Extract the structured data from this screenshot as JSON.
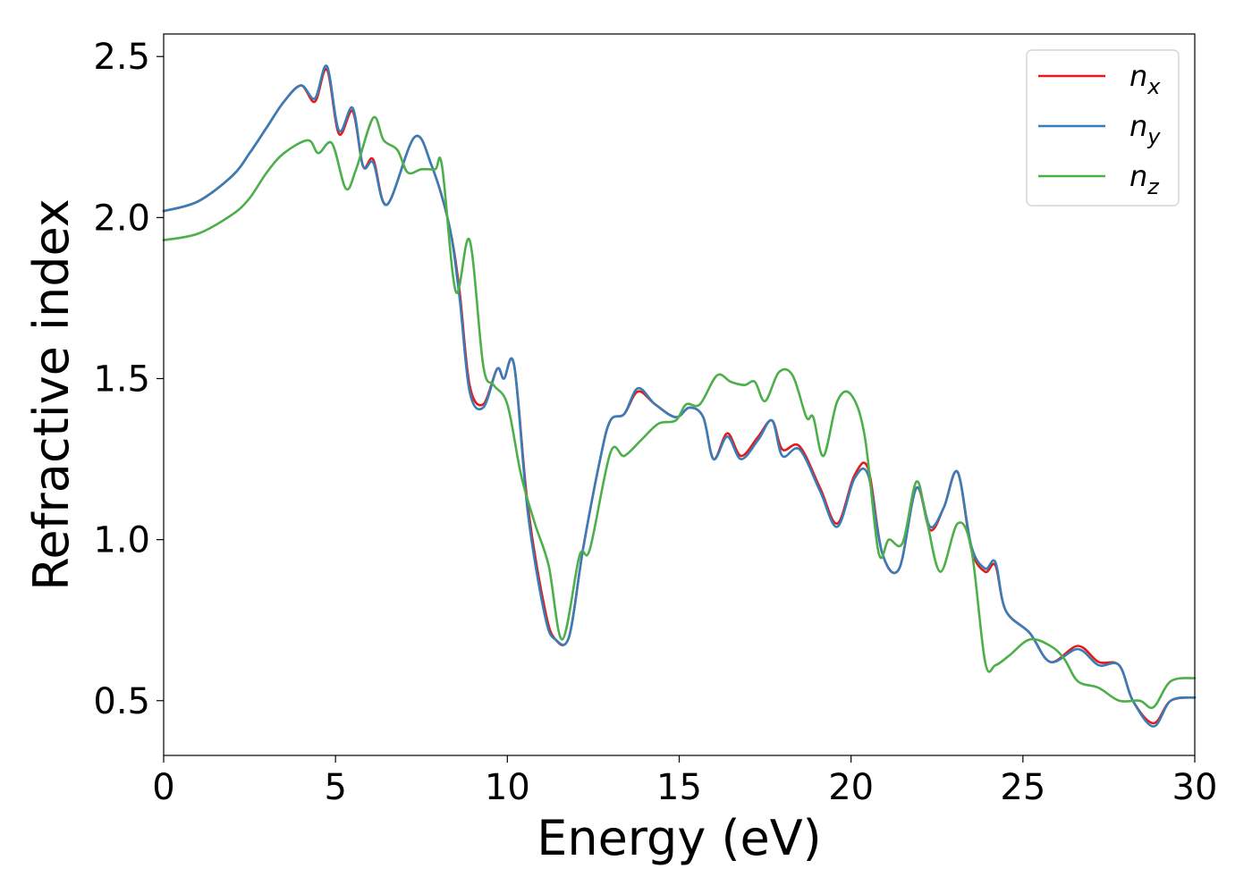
{
  "chart_data": {
    "type": "line",
    "title": "",
    "xlabel": "Energy (eV)",
    "ylabel": "Refractive index",
    "xlim": [
      0,
      30
    ],
    "ylim": [
      0.33,
      2.57
    ],
    "xticks": [
      0,
      5,
      10,
      15,
      20,
      25,
      30
    ],
    "xtick_labels": [
      "0",
      "5",
      "10",
      "15",
      "20",
      "25",
      "30"
    ],
    "yticks": [
      0.5,
      1.0,
      1.5,
      2.0,
      2.5
    ],
    "ytick_labels": [
      "0.5",
      "1.0",
      "1.5",
      "2.0",
      "2.5"
    ],
    "grid": false,
    "legend_position": "top-right",
    "series": [
      {
        "name": "n",
        "sub": "x",
        "color": "#e41a1c",
        "x": [
          0,
          1,
          2,
          2.5,
          3,
          3.5,
          4,
          4.4,
          4.75,
          5.1,
          5.5,
          5.8,
          6.1,
          6.5,
          7.3,
          7.8,
          8.3,
          8.6,
          8.9,
          9.3,
          9.7,
          9.9,
          10.2,
          10.6,
          11.1,
          11.4,
          11.8,
          12.2,
          12.7,
          13.0,
          13.4,
          13.8,
          14.3,
          14.9,
          15.3,
          15.7,
          16.0,
          16.4,
          16.8,
          17.3,
          17.7,
          18.0,
          18.5,
          19.1,
          19.6,
          20.1,
          20.5,
          20.9,
          21.4,
          21.9,
          22.3,
          22.7,
          23.1,
          23.5,
          23.9,
          24.2,
          24.5,
          25.2,
          25.8,
          26.6,
          27.2,
          27.8,
          28.2,
          28.8,
          29.3,
          30
        ],
        "y": [
          2.02,
          2.05,
          2.13,
          2.2,
          2.28,
          2.36,
          2.41,
          2.36,
          2.46,
          2.26,
          2.33,
          2.16,
          2.18,
          2.04,
          2.25,
          2.16,
          1.98,
          1.78,
          1.48,
          1.42,
          1.53,
          1.5,
          1.54,
          1.1,
          0.78,
          0.69,
          0.7,
          0.97,
          1.25,
          1.37,
          1.39,
          1.46,
          1.42,
          1.38,
          1.41,
          1.38,
          1.25,
          1.33,
          1.26,
          1.32,
          1.37,
          1.28,
          1.29,
          1.16,
          1.05,
          1.2,
          1.22,
          0.96,
          0.91,
          1.16,
          1.03,
          1.1,
          1.21,
          0.97,
          0.9,
          0.92,
          0.78,
          0.71,
          0.62,
          0.67,
          0.62,
          0.61,
          0.5,
          0.43,
          0.5,
          0.51
        ]
      },
      {
        "name": "n",
        "sub": "y",
        "color": "#377eb8",
        "x": [
          0,
          1,
          2,
          2.5,
          3,
          3.5,
          4,
          4.4,
          4.75,
          5.1,
          5.5,
          5.8,
          6.1,
          6.5,
          7.3,
          7.8,
          8.3,
          8.6,
          8.9,
          9.3,
          9.7,
          9.9,
          10.2,
          10.6,
          11.1,
          11.4,
          11.8,
          12.2,
          12.7,
          13.0,
          13.4,
          13.8,
          14.3,
          14.9,
          15.3,
          15.7,
          16.0,
          16.4,
          16.8,
          17.3,
          17.7,
          18.0,
          18.5,
          19.1,
          19.6,
          20.1,
          20.5,
          20.9,
          21.4,
          21.9,
          22.3,
          22.7,
          23.1,
          23.5,
          23.9,
          24.2,
          24.5,
          25.2,
          25.8,
          26.6,
          27.2,
          27.8,
          28.2,
          28.8,
          29.3,
          30
        ],
        "y": [
          2.02,
          2.05,
          2.13,
          2.2,
          2.28,
          2.36,
          2.41,
          2.37,
          2.47,
          2.27,
          2.34,
          2.16,
          2.17,
          2.04,
          2.25,
          2.16,
          1.98,
          1.76,
          1.46,
          1.41,
          1.53,
          1.5,
          1.54,
          1.08,
          0.76,
          0.69,
          0.7,
          0.97,
          1.25,
          1.37,
          1.39,
          1.47,
          1.42,
          1.38,
          1.41,
          1.38,
          1.25,
          1.32,
          1.25,
          1.31,
          1.37,
          1.26,
          1.28,
          1.15,
          1.04,
          1.19,
          1.2,
          0.96,
          0.91,
          1.16,
          1.04,
          1.1,
          1.21,
          0.98,
          0.91,
          0.93,
          0.78,
          0.71,
          0.62,
          0.66,
          0.61,
          0.61,
          0.5,
          0.42,
          0.5,
          0.51
        ]
      },
      {
        "name": "n",
        "sub": "z",
        "color": "#4daf4a",
        "x": [
          0,
          1,
          2,
          2.5,
          3,
          3.5,
          4.2,
          4.5,
          4.9,
          5.3,
          5.6,
          6.1,
          6.4,
          6.8,
          7.1,
          7.5,
          7.9,
          8.1,
          8.5,
          8.9,
          9.3,
          9.6,
          10.0,
          10.4,
          10.8,
          11.2,
          11.6,
          12.1,
          12.4,
          13.0,
          13.4,
          13.9,
          14.4,
          14.9,
          15.2,
          15.6,
          16.1,
          16.5,
          16.9,
          17.2,
          17.5,
          17.9,
          18.3,
          18.7,
          18.9,
          19.2,
          19.6,
          20.0,
          20.4,
          20.8,
          21.1,
          21.5,
          21.9,
          22.2,
          22.6,
          23.1,
          23.5,
          23.9,
          24.2,
          24.6,
          25.2,
          25.8,
          26.2,
          26.6,
          27.2,
          27.8,
          28.4,
          28.8,
          29.3,
          30
        ],
        "y": [
          1.93,
          1.95,
          2.01,
          2.06,
          2.14,
          2.2,
          2.24,
          2.2,
          2.23,
          2.09,
          2.15,
          2.31,
          2.24,
          2.21,
          2.14,
          2.15,
          2.15,
          2.16,
          1.77,
          1.93,
          1.54,
          1.48,
          1.42,
          1.2,
          1.05,
          0.92,
          0.69,
          0.95,
          0.97,
          1.27,
          1.26,
          1.31,
          1.36,
          1.37,
          1.42,
          1.42,
          1.51,
          1.49,
          1.48,
          1.49,
          1.43,
          1.52,
          1.51,
          1.38,
          1.38,
          1.26,
          1.43,
          1.45,
          1.32,
          0.96,
          1.0,
          0.99,
          1.18,
          1.06,
          0.9,
          1.05,
          0.97,
          0.62,
          0.61,
          0.64,
          0.69,
          0.67,
          0.63,
          0.56,
          0.54,
          0.5,
          0.5,
          0.48,
          0.56,
          0.57
        ]
      }
    ]
  }
}
